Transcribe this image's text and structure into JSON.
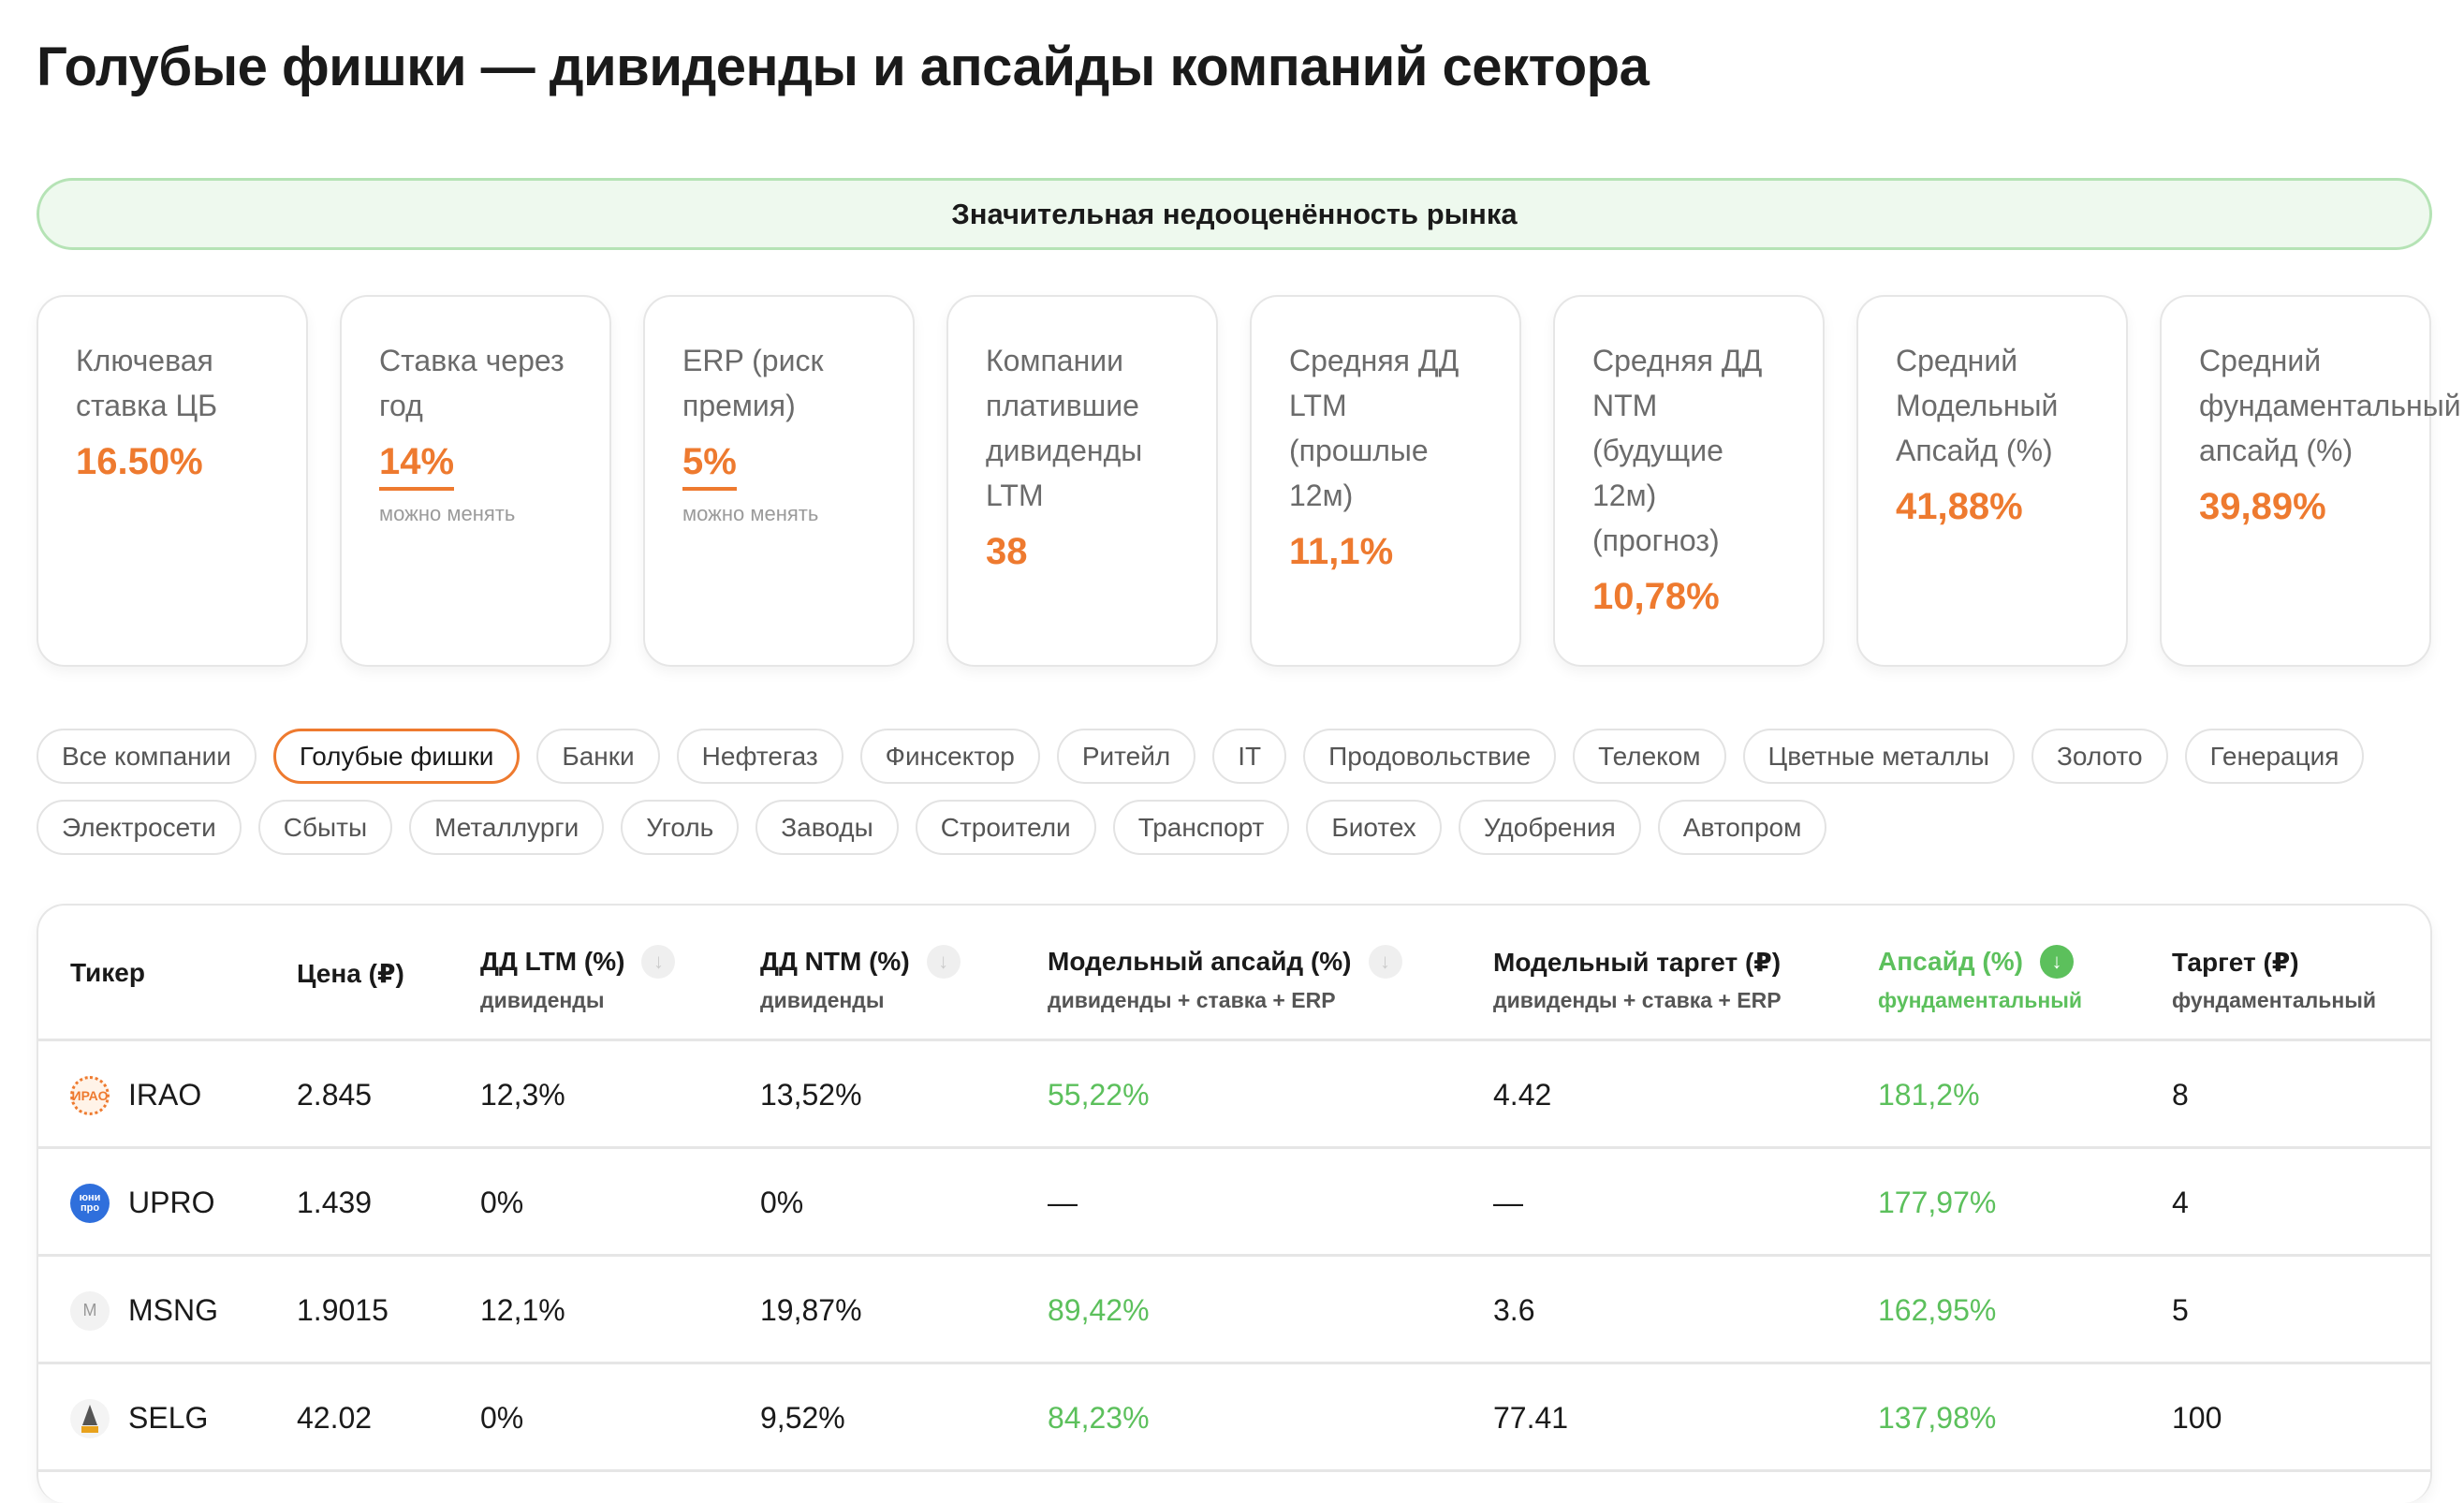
{
  "title": "Голубые фишки — дивиденды и апсайды компаний сектора",
  "banner": "Значительная недооценённость рынка",
  "cards": [
    {
      "label": "Ключевая\nставка ЦБ",
      "value": "16.50%"
    },
    {
      "label": "Ставка через\nгод",
      "value": "14%",
      "hint": "можно менять"
    },
    {
      "label": "ERP (риск\nпремия)",
      "value": "5%",
      "hint": "можно менять"
    },
    {
      "label": "Компании\nплатившие\nдивиденды\nLTM",
      "value": "38"
    },
    {
      "label": "Средняя ДД\nLTM\n(прошлые\n12м)",
      "value": "11,1%"
    },
    {
      "label": "Средняя ДД\nNTM\n(будущие\n12м)\n(прогноз)",
      "value": "10,78%"
    },
    {
      "label": "Средний\nМодельный\nАпсайд (%)",
      "value": "41,88%"
    },
    {
      "label": "Средний\nфундаментальный\nапсайд (%)",
      "value": "39,89%"
    }
  ],
  "chips": [
    "Все компании",
    "Голубые фишки",
    "Банки",
    "Нефтегаз",
    "Финсектор",
    "Ритейл",
    "IT",
    "Продовольствие",
    "Телеком",
    "Цветные металлы",
    "Золото",
    "Генерация",
    "Электросети",
    "Сбыты",
    "Металлурги",
    "Уголь",
    "Заводы",
    "Строители",
    "Транспорт",
    "Биотех",
    "Удобрения",
    "Автопром"
  ],
  "active_chip": "Голубые фишки",
  "columns": [
    {
      "title": "Тикер"
    },
    {
      "title": "Цена (₽)"
    },
    {
      "title": "ДД LTM (%)",
      "sub": "дивиденды",
      "sort": "down"
    },
    {
      "title": "ДД NTM (%)",
      "sub": "дивиденды",
      "sort": "down"
    },
    {
      "title": "Модельный апсайд (%)",
      "sub": "дивиденды + ставка + ERP",
      "sort": "down"
    },
    {
      "title": "Модельный таргет (₽)",
      "sub": "дивиденды + ставка + ERP"
    },
    {
      "title": "Апсайд (%)",
      "sub": "фундаментальный",
      "sort": "down",
      "active": true
    },
    {
      "title": "Таргет (₽)",
      "sub": "фундаментальный"
    }
  ],
  "rows": [
    {
      "ticker": "IRAO",
      "logo": "ИРАО",
      "price": "2.845",
      "ltm": "12,3%",
      "ntm": "13,52%",
      "model_upside": "55,22%",
      "model_target": "4.42",
      "upside": "181,2%",
      "target": "8"
    },
    {
      "ticker": "UPRO",
      "logo": "юни про",
      "price": "1.439",
      "ltm": "0%",
      "ntm": "0%",
      "model_upside": "—",
      "model_target": "—",
      "upside": "177,97%",
      "target": "4"
    },
    {
      "ticker": "MSNG",
      "logo": "M",
      "price": "1.9015",
      "ltm": "12,1%",
      "ntm": "19,87%",
      "model_upside": "89,42%",
      "model_target": "3.6",
      "upside": "162,95%",
      "target": "5"
    },
    {
      "ticker": "SELG",
      "logo": "",
      "price": "42.02",
      "ltm": "0%",
      "ntm": "9,52%",
      "model_upside": "84,23%",
      "model_target": "77.41",
      "upside": "137,98%",
      "target": "100"
    }
  ],
  "colors": {
    "accent": "#ee7a2f",
    "green": "#5cc05c",
    "banner_bg": "#eef9ee"
  }
}
